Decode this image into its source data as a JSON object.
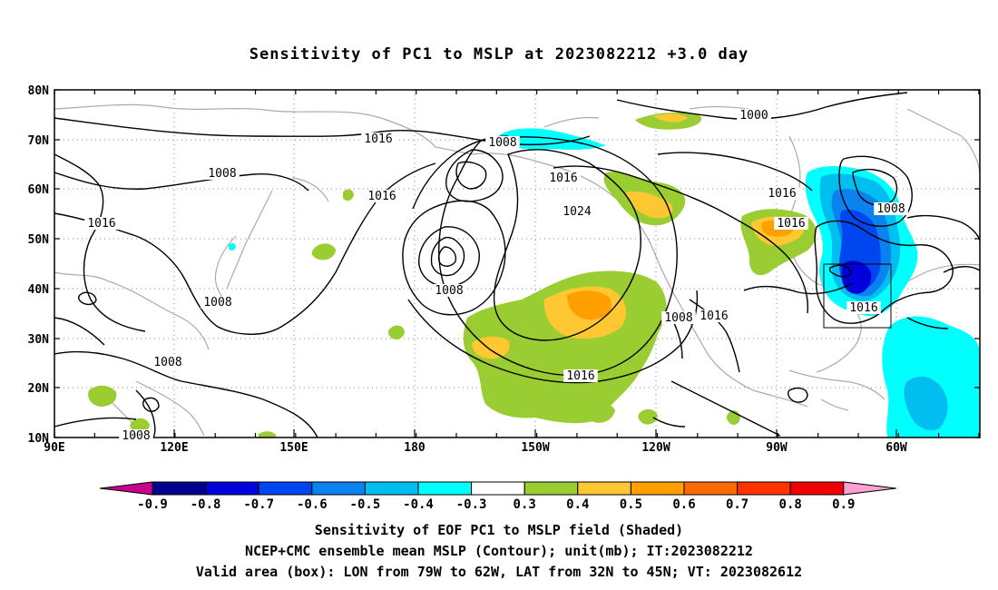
{
  "title": "Sensitivity of PC1 to MSLP at 2023082212 +3.0 day",
  "lat_labels": [
    "80N",
    "70N",
    "60N",
    "50N",
    "40N",
    "30N",
    "20N",
    "10N"
  ],
  "lon_labels": [
    "90E",
    "120E",
    "150E",
    "180",
    "150W",
    "120W",
    "90W",
    "60W"
  ],
  "contour_labels": [
    "1016",
    "1008",
    "1016",
    "1016",
    "1008",
    "1008",
    "1008",
    "1008",
    "1016",
    "1024",
    "1008",
    "1016",
    "1000",
    "1016",
    "1008",
    "1016",
    "1016",
    "1008",
    "1016"
  ],
  "colorbar": {
    "labels": [
      "-0.9",
      "-0.8",
      "-0.7",
      "-0.6",
      "-0.5",
      "-0.4",
      "-0.3",
      "0.3",
      "0.4",
      "0.5",
      "0.6",
      "0.7",
      "0.8",
      "0.9"
    ],
    "colors": [
      "#00008c",
      "#0000dc",
      "#0046f0",
      "#0a82ef",
      "#00bef0",
      "#00ffff",
      "#ffffff",
      "#9acd32",
      "#ffc832",
      "#ffa000",
      "#ff6a00",
      "#ff3200",
      "#f00000"
    ],
    "low_arrow_color": "#c8008c",
    "high_arrow_color": "#ffa0d2"
  },
  "caption": {
    "line1": "Sensitivity of EOF PC1 to MSLP field (Shaded)",
    "line2": "NCEP+CMC ensemble mean MSLP (Contour); unit(mb); IT:2023082212",
    "line3": "Valid area (box): LON from 79W to 62W, LAT from 32N to 45N; VT: 2023082612"
  }
}
